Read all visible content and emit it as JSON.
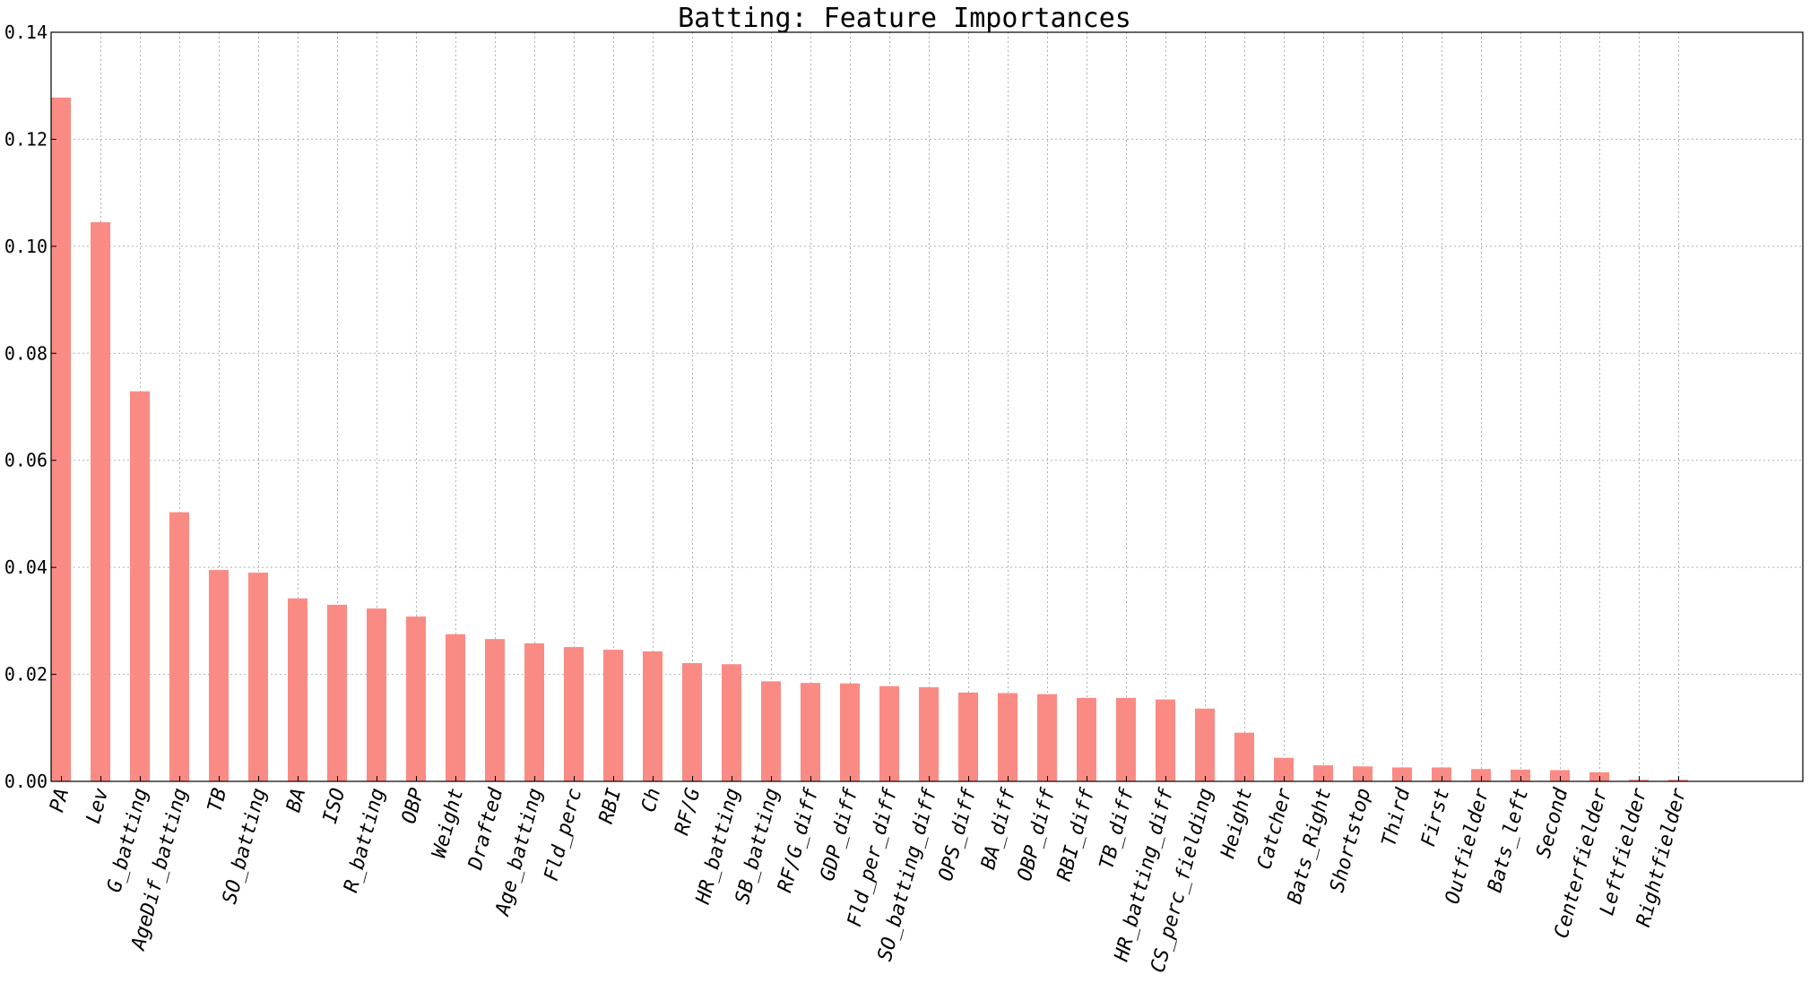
{
  "chart_data": {
    "type": "bar",
    "title": "Batting: Feature Importances",
    "xlabel": "",
    "ylabel": "",
    "ylim": [
      0,
      0.14
    ],
    "yticks": [
      "0.00",
      "0.02",
      "0.04",
      "0.06",
      "0.08",
      "0.10",
      "0.12",
      "0.14"
    ],
    "grid": true,
    "bar_color": "#fa8b84",
    "categories": [
      "PA",
      "Lev",
      "G_batting",
      "AgeDif_batting",
      "TB",
      "SO_batting",
      "BA",
      "ISO",
      "R_batting",
      "OBP",
      "Weight",
      "Drafted",
      "Age_batting",
      "Fld_perc",
      "RBI",
      "Ch",
      "RF/G",
      "HR_batting",
      "SB_batting",
      "RF/G_diff",
      "GDP_diff",
      "Fld_per_diff",
      "SO_batting_diff",
      "OPS_diff",
      "BA_diff",
      "OBP_diff",
      "RBI_diff",
      "TB_diff",
      "HR_batting_diff",
      "CS_perc_fielding",
      "Height",
      "Catcher",
      "Bats_Right",
      "Shortstop",
      "Third",
      "First",
      "Outfielder",
      "Bats_left",
      "Second",
      "Centerfielder",
      "Leftfielder",
      "Rightfielder"
    ],
    "values": [
      0.1278,
      0.1045,
      0.0729,
      0.0503,
      0.0395,
      0.039,
      0.0342,
      0.033,
      0.0323,
      0.0308,
      0.0275,
      0.0266,
      0.0258,
      0.0251,
      0.0246,
      0.0243,
      0.0221,
      0.0219,
      0.0187,
      0.0184,
      0.0183,
      0.0178,
      0.0176,
      0.0166,
      0.0165,
      0.0163,
      0.0156,
      0.0156,
      0.0153,
      0.0136,
      0.0091,
      0.0044,
      0.003,
      0.0028,
      0.0026,
      0.0026,
      0.0023,
      0.0022,
      0.0021,
      0.0017,
      0.0003,
      0.0003
    ]
  }
}
